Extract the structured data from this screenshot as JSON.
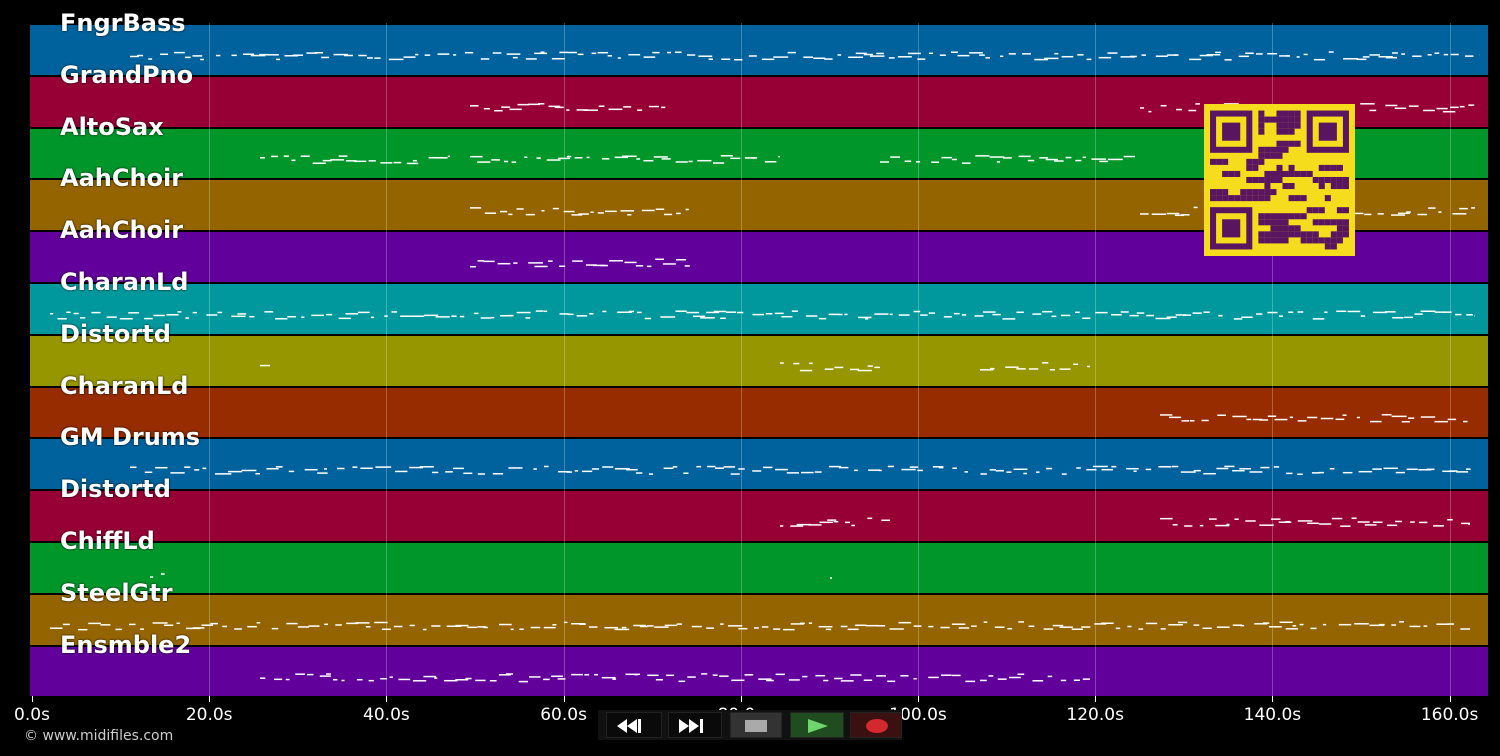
{
  "tracks": [
    {
      "label": "FngrBass",
      "color": "#00629c"
    },
    {
      "label": "GrandPno",
      "color": "#970034"
    },
    {
      "label": "AltoSax",
      "color": "#00962a"
    },
    {
      "label": "AahChoir",
      "color": "#946400"
    },
    {
      "label": "AahChoir",
      "color": "#62009b"
    },
    {
      "label": "CharanLd",
      "color": "#00989c"
    },
    {
      "label": "Distortd",
      "color": "#969600"
    },
    {
      "label": "CharanLd",
      "color": "#962c00"
    },
    {
      "label": "GM Drums",
      "color": "#00629c"
    },
    {
      "label": "Distortd",
      "color": "#970034"
    },
    {
      "label": "ChiffLd",
      "color": "#00962a"
    },
    {
      "label": "SteelGtr",
      "color": "#946400"
    },
    {
      "label": "Ensmble2",
      "color": "#62009b"
    }
  ],
  "timeline": {
    "ticks": [
      "0.0s",
      "20.0s",
      "40.0s",
      "60.0s",
      "80.0s",
      "100.0s",
      "120.0s",
      "140.0s",
      "160.0s"
    ]
  },
  "copyright": "© www.midifiles.com",
  "transport": {
    "rewind_icon": "rewind-icon",
    "forward_icon": "fast-forward-icon",
    "stop_icon": "stop-icon",
    "play_icon": "play-icon",
    "record_icon": "record-icon"
  },
  "qr_icon": "qr-code-icon"
}
